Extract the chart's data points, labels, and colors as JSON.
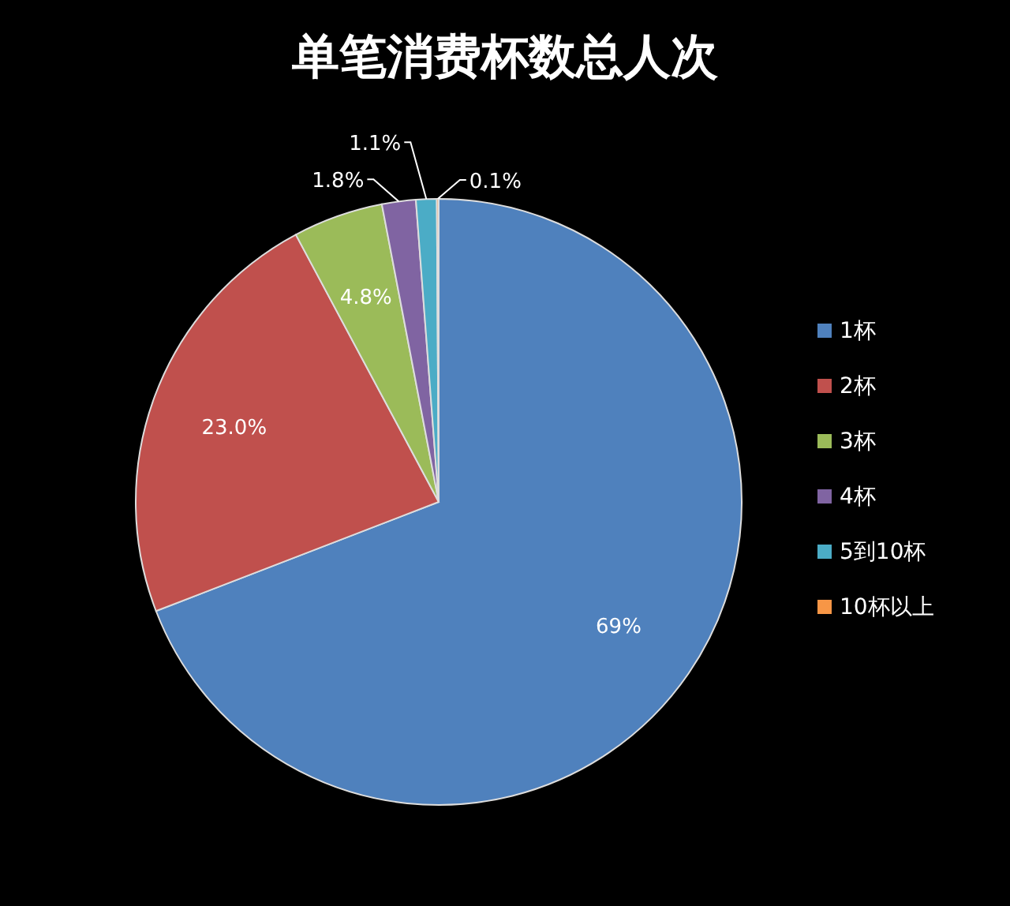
{
  "chart_data": {
    "type": "pie",
    "title": "单笔消费杯数总人次",
    "categories": [
      "1杯",
      "2杯",
      "3杯",
      "4杯",
      "5到10杯",
      "10杯以上"
    ],
    "values": [
      69,
      23.0,
      4.8,
      1.8,
      1.1,
      0.1
    ],
    "value_labels": [
      "69%",
      "23.0%",
      "4.8%",
      "1.8%",
      "1.1%",
      "0.1%"
    ],
    "colors": [
      "#4f81bd",
      "#c0504d",
      "#9bbb59",
      "#8064a2",
      "#4bacc6",
      "#f79646"
    ],
    "legend": "right"
  }
}
